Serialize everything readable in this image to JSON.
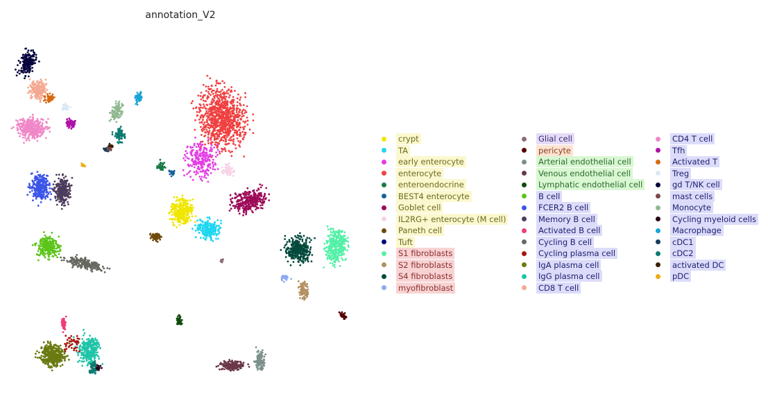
{
  "chart_data": {
    "type": "scatter",
    "title": "annotation_V2",
    "xlabel": "",
    "ylabel": "",
    "grid": false,
    "legend_placement": "right",
    "legend": [
      [
        {
          "label": "crypt",
          "color": "#f0e600",
          "highlight": "yellow"
        },
        {
          "label": "TA",
          "color": "#1fd6f0",
          "highlight": "yellow"
        },
        {
          "label": "early enterocyte",
          "color": "#e43de4",
          "highlight": "yellow"
        },
        {
          "label": "enterocyte",
          "color": "#f04040",
          "highlight": "yellow"
        },
        {
          "label": "enteroendocrine",
          "color": "#1a7a46",
          "highlight": "yellow"
        },
        {
          "label": "BEST4 enterocyte",
          "color": "#14649a",
          "highlight": "yellow"
        },
        {
          "label": "Goblet cell",
          "color": "#9c0a58",
          "highlight": "yellow"
        },
        {
          "label": "IL2RG+ enterocyte (M cell)",
          "color": "#f7d2e8",
          "highlight": "yellow"
        },
        {
          "label": "Paneth cell",
          "color": "#6f4a0a",
          "highlight": "yellow"
        },
        {
          "label": "Tuft",
          "color": "#02037c",
          "highlight": "yellow"
        },
        {
          "label": "S1 fibroblasts",
          "color": "#55f0a8",
          "highlight": "red"
        },
        {
          "label": "S2 fibroblasts",
          "color": "#b39062",
          "highlight": "red"
        },
        {
          "label": "S4 fibroblasts",
          "color": "#044a3c",
          "highlight": "red"
        },
        {
          "label": "myofibroblast",
          "color": "#8fa8f0",
          "highlight": "red"
        }
      ],
      [
        {
          "label": "Glial cell",
          "color": "#8a6e7a",
          "highlight": "lav"
        },
        {
          "label": "pericyte",
          "color": "#560404",
          "highlight": "peach"
        },
        {
          "label": "Arterial endothelial cell",
          "color": "#7c918c",
          "highlight": "green"
        },
        {
          "label": "Venous endothelial cell",
          "color": "#6a3848",
          "highlight": "green"
        },
        {
          "label": "Lymphatic endothelial cell",
          "color": "#104a0c",
          "highlight": "green"
        },
        {
          "label": "B cell",
          "color": "#5cc41a",
          "highlight": "blue"
        },
        {
          "label": "FCER2 B cell",
          "color": "#3c55e8",
          "highlight": "blue"
        },
        {
          "label": "Memory B cell",
          "color": "#4c3c5c",
          "highlight": "blue"
        },
        {
          "label": "Activated B cell",
          "color": "#ee3c78",
          "highlight": "blue"
        },
        {
          "label": "Cycling B cell",
          "color": "#686862",
          "highlight": "blue"
        },
        {
          "label": "Cycling plasma cell",
          "color": "#a81410",
          "highlight": "blue"
        },
        {
          "label": "IgA plasma cell",
          "color": "#6a7a10",
          "highlight": "blue"
        },
        {
          "label": "IgG plasma cell",
          "color": "#20c4a8",
          "highlight": "blue"
        },
        {
          "label": "CD8 T cell",
          "color": "#f4a890",
          "highlight": "blue"
        }
      ],
      [
        {
          "label": "CD4 T cell",
          "color": "#f088c8",
          "highlight": "blue"
        },
        {
          "label": "Tfh",
          "color": "#b012a8",
          "highlight": "blue"
        },
        {
          "label": "Activated T",
          "color": "#d86a14",
          "highlight": "blue"
        },
        {
          "label": "Treg",
          "color": "#dce8f4",
          "highlight": "blue"
        },
        {
          "label": "gd T/NK cell",
          "color": "#06043c",
          "highlight": "blue"
        },
        {
          "label": "mast cells",
          "color": "#7a4a4a",
          "highlight": "blue"
        },
        {
          "label": "Monocyte",
          "color": "#90b890",
          "highlight": "blue"
        },
        {
          "label": "Cycling myeloid cells",
          "color": "#2a0418",
          "highlight": "blue"
        },
        {
          "label": "Macrophage",
          "color": "#1aa4d8",
          "highlight": "blue"
        },
        {
          "label": "cDC1",
          "color": "#123c5a",
          "highlight": "blue"
        },
        {
          "label": "cDC2",
          "color": "#0c7a70",
          "highlight": "blue"
        },
        {
          "label": "activated DC",
          "color": "#3a2008",
          "highlight": "blue"
        },
        {
          "label": "pDC",
          "color": "#f0aa10",
          "highlight": "blue"
        }
      ]
    ]
  }
}
